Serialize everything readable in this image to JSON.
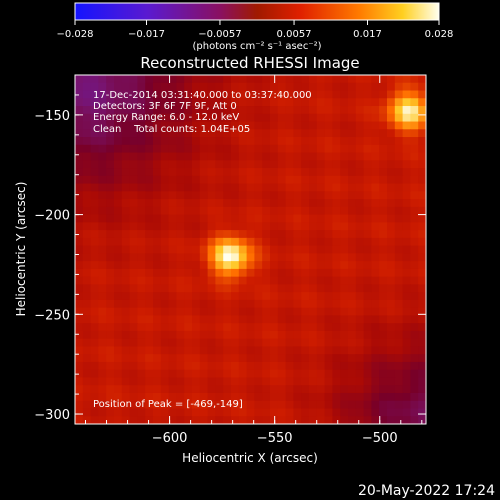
{
  "chart_data": {
    "type": "heatmap",
    "title": "Reconstructed RHESSI Image",
    "xlabel": "Heliocentric X (arcsec)",
    "ylabel": "Heliocentric Y (arcsec)",
    "xlim": [
      -645,
      -478
    ],
    "ylim": [
      -305,
      -130
    ],
    "x_ticks": [
      {
        "value": -600,
        "label": "−600"
      },
      {
        "value": -550,
        "label": "−550"
      },
      {
        "value": -500,
        "label": "−500"
      }
    ],
    "y_ticks": [
      {
        "value": -150,
        "label": "−150"
      },
      {
        "value": -200,
        "label": "−200"
      },
      {
        "value": -250,
        "label": "−250"
      },
      {
        "value": -300,
        "label": "−300"
      }
    ],
    "sources": [
      {
        "x": -571,
        "y": -221,
        "peak": 0.028,
        "sigma": 7
      },
      {
        "x": -486,
        "y": -148,
        "peak": 0.026,
        "sigma": 7
      }
    ],
    "background": 0.009,
    "colorbar": {
      "min": -0.028,
      "max": 0.028,
      "ticks": [
        {
          "value": -0.028,
          "label": "−0.028"
        },
        {
          "value": -0.017,
          "label": "−0.017"
        },
        {
          "value": -0.0057,
          "label": "−0.0057"
        },
        {
          "value": 0.0057,
          "label": "0.0057"
        },
        {
          "value": 0.017,
          "label": "0.017"
        },
        {
          "value": 0.028,
          "label": "0.028"
        }
      ],
      "units": "(photons cm⁻² s⁻¹ asec⁻²)"
    },
    "annotations": {
      "time": "17-Dec-2014 03:31:40.000 to 03:37:40.000",
      "detectors": "Detectors: 3F 6F 7F 9F, Att 0",
      "energy": "Energy Range: 6.0 - 12.0 keV",
      "method": "Clean    Total counts: 1.04E+05",
      "peak": "Position of Peak = [-469,-149]"
    }
  },
  "footer": {
    "timestamp": "20-May-2022 17:24"
  }
}
